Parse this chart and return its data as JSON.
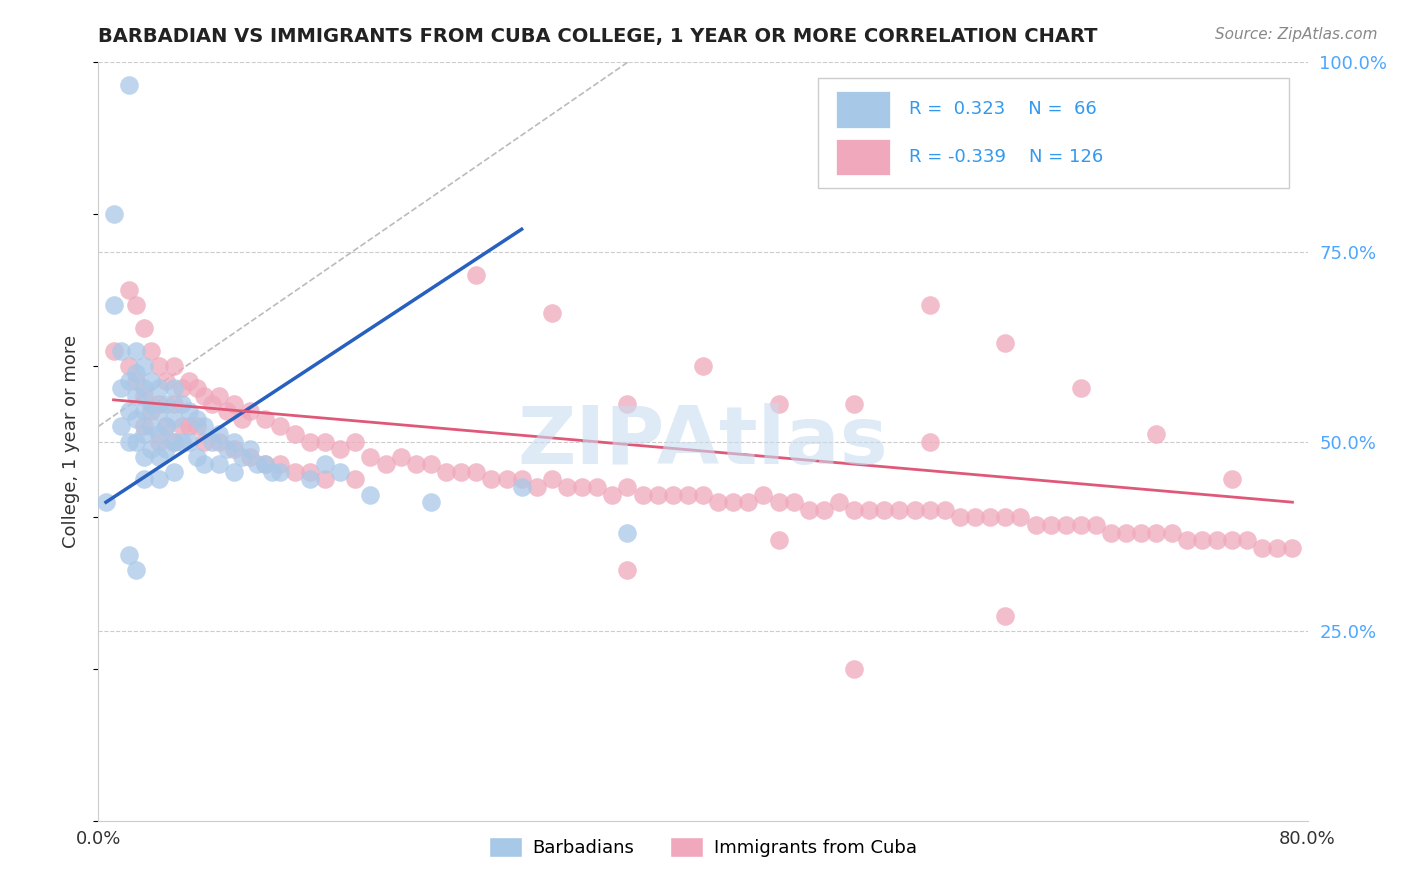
{
  "title": "BARBADIAN VS IMMIGRANTS FROM CUBA COLLEGE, 1 YEAR OR MORE CORRELATION CHART",
  "source": "Source: ZipAtlas.com",
  "ylabel": "College, 1 year or more",
  "legend_label1": "Barbadians",
  "legend_label2": "Immigrants from Cuba",
  "R1": 0.323,
  "N1": 66,
  "R2": -0.339,
  "N2": 126,
  "color_blue": "#A8C8E8",
  "color_pink": "#F0A8BC",
  "color_blue_line": "#2860C0",
  "color_pink_line": "#E05878",
  "watermark": "ZIPAtlas",
  "xlim": [
    0.0,
    0.8
  ],
  "ylim": [
    0.0,
    1.0
  ],
  "ytick_positions": [
    0.0,
    0.25,
    0.5,
    0.75,
    1.0
  ],
  "ytick_labels_right": [
    "",
    "25.0%",
    "50.0%",
    "75.0%",
    "100.0%"
  ],
  "blue_x": [
    0.005,
    0.01,
    0.01,
    0.015,
    0.015,
    0.015,
    0.02,
    0.02,
    0.02,
    0.02,
    0.025,
    0.025,
    0.025,
    0.025,
    0.025,
    0.03,
    0.03,
    0.03,
    0.03,
    0.03,
    0.03,
    0.035,
    0.035,
    0.035,
    0.035,
    0.04,
    0.04,
    0.04,
    0.04,
    0.04,
    0.045,
    0.045,
    0.045,
    0.05,
    0.05,
    0.05,
    0.05,
    0.055,
    0.055,
    0.06,
    0.06,
    0.065,
    0.065,
    0.07,
    0.07,
    0.075,
    0.08,
    0.08,
    0.085,
    0.09,
    0.09,
    0.095,
    0.1,
    0.105,
    0.11,
    0.115,
    0.12,
    0.14,
    0.15,
    0.16,
    0.18,
    0.22,
    0.28,
    0.35,
    0.02,
    0.025
  ],
  "blue_y": [
    0.42,
    0.8,
    0.68,
    0.62,
    0.57,
    0.52,
    0.97,
    0.58,
    0.54,
    0.5,
    0.62,
    0.59,
    0.56,
    0.53,
    0.5,
    0.6,
    0.57,
    0.54,
    0.51,
    0.48,
    0.45,
    0.58,
    0.55,
    0.52,
    0.49,
    0.57,
    0.54,
    0.51,
    0.48,
    0.45,
    0.55,
    0.52,
    0.49,
    0.57,
    0.53,
    0.5,
    0.46,
    0.55,
    0.5,
    0.54,
    0.5,
    0.53,
    0.48,
    0.52,
    0.47,
    0.5,
    0.51,
    0.47,
    0.49,
    0.5,
    0.46,
    0.48,
    0.49,
    0.47,
    0.47,
    0.46,
    0.46,
    0.45,
    0.47,
    0.46,
    0.43,
    0.42,
    0.44,
    0.38,
    0.35,
    0.33
  ],
  "pink_x": [
    0.01,
    0.02,
    0.02,
    0.025,
    0.025,
    0.03,
    0.03,
    0.03,
    0.035,
    0.035,
    0.04,
    0.04,
    0.04,
    0.045,
    0.045,
    0.05,
    0.05,
    0.05,
    0.055,
    0.055,
    0.06,
    0.06,
    0.065,
    0.065,
    0.07,
    0.07,
    0.075,
    0.08,
    0.08,
    0.085,
    0.09,
    0.09,
    0.095,
    0.1,
    0.1,
    0.11,
    0.11,
    0.12,
    0.12,
    0.13,
    0.13,
    0.14,
    0.14,
    0.15,
    0.15,
    0.16,
    0.17,
    0.17,
    0.18,
    0.19,
    0.2,
    0.21,
    0.22,
    0.23,
    0.24,
    0.25,
    0.26,
    0.27,
    0.28,
    0.29,
    0.3,
    0.31,
    0.32,
    0.33,
    0.34,
    0.35,
    0.36,
    0.37,
    0.38,
    0.39,
    0.4,
    0.41,
    0.42,
    0.43,
    0.44,
    0.45,
    0.46,
    0.47,
    0.48,
    0.49,
    0.5,
    0.51,
    0.52,
    0.53,
    0.54,
    0.55,
    0.56,
    0.57,
    0.58,
    0.59,
    0.6,
    0.61,
    0.62,
    0.63,
    0.64,
    0.65,
    0.66,
    0.67,
    0.68,
    0.69,
    0.7,
    0.71,
    0.72,
    0.73,
    0.74,
    0.75,
    0.76,
    0.77,
    0.78,
    0.79,
    0.35,
    0.4,
    0.45,
    0.5,
    0.55,
    0.25,
    0.3,
    0.55,
    0.6,
    0.65,
    0.7,
    0.75,
    0.5,
    0.6,
    0.35,
    0.45
  ],
  "pink_y": [
    0.62,
    0.7,
    0.6,
    0.68,
    0.58,
    0.65,
    0.56,
    0.52,
    0.62,
    0.54,
    0.6,
    0.55,
    0.5,
    0.58,
    0.52,
    0.6,
    0.55,
    0.5,
    0.57,
    0.52,
    0.58,
    0.52,
    0.57,
    0.52,
    0.56,
    0.5,
    0.55,
    0.56,
    0.5,
    0.54,
    0.55,
    0.49,
    0.53,
    0.54,
    0.48,
    0.53,
    0.47,
    0.52,
    0.47,
    0.51,
    0.46,
    0.5,
    0.46,
    0.5,
    0.45,
    0.49,
    0.5,
    0.45,
    0.48,
    0.47,
    0.48,
    0.47,
    0.47,
    0.46,
    0.46,
    0.46,
    0.45,
    0.45,
    0.45,
    0.44,
    0.45,
    0.44,
    0.44,
    0.44,
    0.43,
    0.44,
    0.43,
    0.43,
    0.43,
    0.43,
    0.43,
    0.42,
    0.42,
    0.42,
    0.43,
    0.42,
    0.42,
    0.41,
    0.41,
    0.42,
    0.41,
    0.41,
    0.41,
    0.41,
    0.41,
    0.41,
    0.41,
    0.4,
    0.4,
    0.4,
    0.4,
    0.4,
    0.39,
    0.39,
    0.39,
    0.39,
    0.39,
    0.38,
    0.38,
    0.38,
    0.38,
    0.38,
    0.37,
    0.37,
    0.37,
    0.37,
    0.37,
    0.36,
    0.36,
    0.36,
    0.55,
    0.6,
    0.55,
    0.55,
    0.5,
    0.72,
    0.67,
    0.68,
    0.63,
    0.57,
    0.51,
    0.45,
    0.2,
    0.27,
    0.33,
    0.37
  ],
  "blue_line_x": [
    0.005,
    0.28
  ],
  "blue_line_y": [
    0.42,
    0.78
  ],
  "pink_line_x": [
    0.01,
    0.79
  ],
  "pink_line_y": [
    0.555,
    0.42
  ],
  "diag_line_x": [
    0.0,
    0.35
  ],
  "diag_line_y": [
    0.52,
    1.0
  ]
}
